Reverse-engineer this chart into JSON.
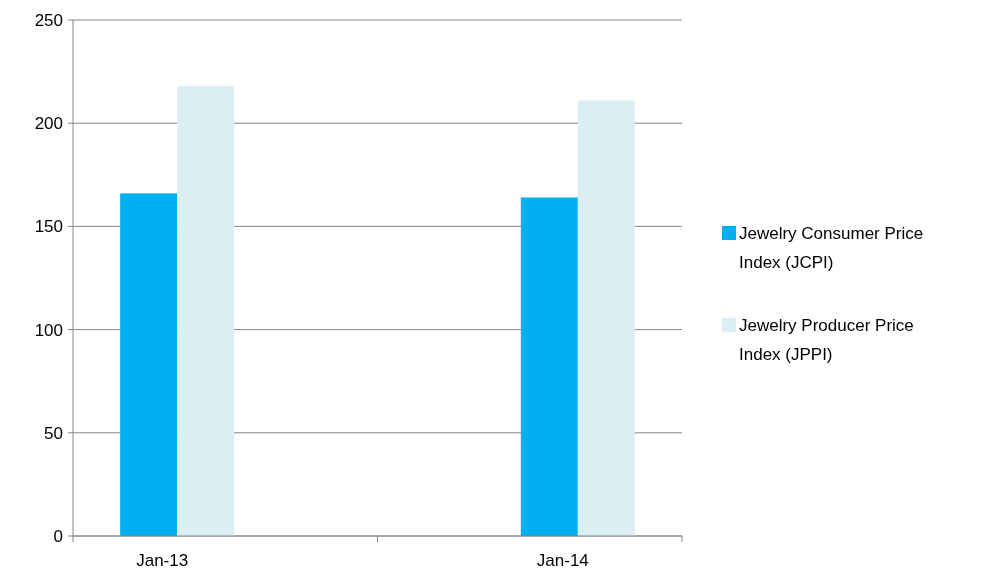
{
  "chart_data": {
    "type": "bar",
    "categories": [
      "Jan-13",
      "Jan-14"
    ],
    "series": [
      {
        "name": "Jewelry Consumer Price Index (JCPI)",
        "color": "#00b0f0",
        "values": [
          166,
          164
        ]
      },
      {
        "name": "Jewelry Producer Price Index (JPPI)",
        "color": "#daeef3",
        "values": [
          218,
          211
        ]
      }
    ],
    "ylim": [
      0,
      250
    ],
    "yticks": [
      0,
      50,
      100,
      150,
      200,
      250
    ],
    "grid": "y",
    "legend": "right"
  }
}
